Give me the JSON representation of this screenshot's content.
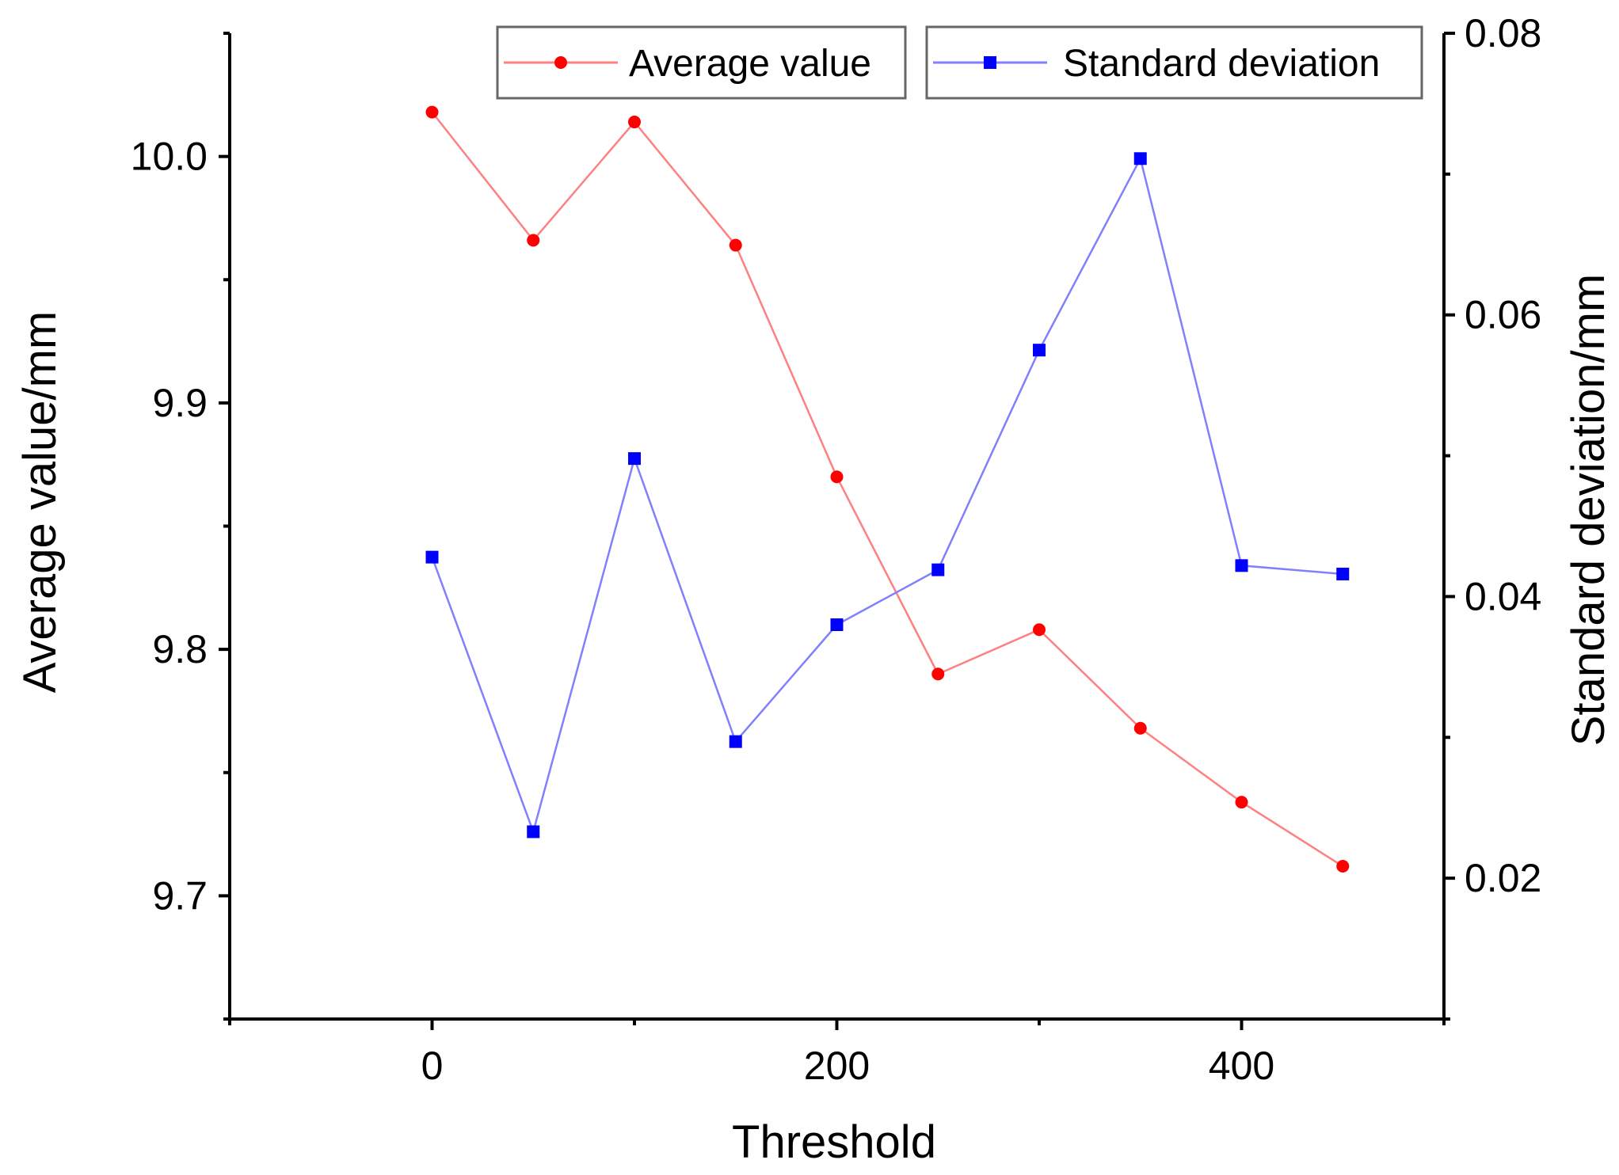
{
  "chart_data": {
    "type": "line",
    "title": "",
    "xlabel": "Threshold",
    "ylabel": "Average value/mm",
    "y2label": "Standard deviation/mm",
    "x": [
      0,
      50,
      100,
      150,
      200,
      250,
      300,
      350,
      400,
      450
    ],
    "xlim": [
      -100,
      500
    ],
    "ylim": [
      9.65,
      10.05
    ],
    "y2lim": [
      0.01,
      0.08
    ],
    "xticks": [
      0,
      200,
      400
    ],
    "xtick_labels": [
      "0",
      "200",
      "400"
    ],
    "yticks": [
      9.7,
      9.8,
      9.9,
      10.0
    ],
    "ytick_labels": [
      "9.7",
      "9.8",
      "9.9",
      "10.0"
    ],
    "y2ticks": [
      0.02,
      0.04,
      0.06,
      0.08
    ],
    "y2tick_labels": [
      "0.02",
      "0.04",
      "0.06",
      "0.08"
    ],
    "legend_position": "top-right",
    "series": [
      {
        "name": "Average value",
        "axis": "left",
        "marker": "circle",
        "color": "#ff0000",
        "line_color": "#ff8080",
        "values": [
          10.018,
          9.966,
          10.014,
          9.964,
          9.87,
          9.79,
          9.808,
          9.768,
          9.738,
          9.712
        ]
      },
      {
        "name": "Standard deviation",
        "axis": "right",
        "marker": "square",
        "color": "#0000ff",
        "line_color": "#8080ff",
        "values": [
          0.0428,
          0.0233,
          0.0498,
          0.0297,
          0.038,
          0.0419,
          0.0575,
          0.0711,
          0.0422,
          0.0416
        ]
      }
    ]
  }
}
